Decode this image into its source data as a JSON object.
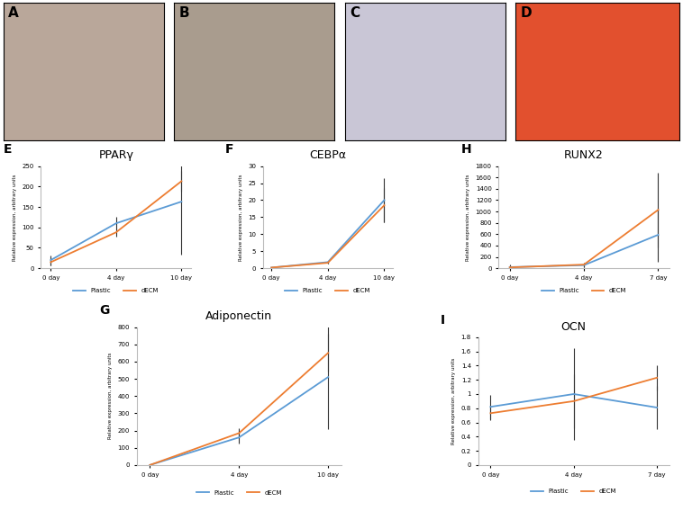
{
  "images": [
    {
      "panel_label": "A",
      "color": "#b9a79a"
    },
    {
      "panel_label": "B",
      "color": "#a99c8e"
    },
    {
      "panel_label": "C",
      "color": "#c9c6d6"
    },
    {
      "panel_label": "D",
      "color": "#e2502e"
    }
  ],
  "chart_data": [
    {
      "type": "line",
      "panel_label": "E",
      "title": "PPARγ",
      "y_label": "Relative expression, arbitrary units",
      "categories": [
        "0 day",
        "4 day",
        "10 day"
      ],
      "ylim": [
        0,
        250
      ],
      "yticks": [
        0,
        50,
        100,
        150,
        200,
        250
      ],
      "legend": "bottom",
      "series": [
        {
          "name": "Plastic",
          "color": "#5b9bd5",
          "values": [
            20,
            110,
            163
          ],
          "errors": [
            12,
            15,
            130
          ]
        },
        {
          "name": "dECM",
          "color": "#ed7d31",
          "values": [
            15,
            88,
            213
          ],
          "errors": [
            8,
            10,
            25
          ]
        }
      ]
    },
    {
      "type": "line",
      "panel_label": "F",
      "title": "CEBPα",
      "y_label": "Relative expression, arbitrary units",
      "categories": [
        "0 day",
        "4 day",
        "10 day"
      ],
      "ylim": [
        0,
        30
      ],
      "yticks": [
        0,
        5,
        10,
        15,
        20,
        25,
        30
      ],
      "legend": "bottom",
      "series": [
        {
          "name": "Plastic",
          "color": "#5b9bd5",
          "values": [
            0.2,
            1.8,
            20
          ],
          "errors": [
            0.2,
            0.3,
            6.5
          ]
        },
        {
          "name": "dECM",
          "color": "#ed7d31",
          "values": [
            0.2,
            1.6,
            18.5
          ],
          "errors": [
            0.2,
            0.3,
            5
          ]
        }
      ]
    },
    {
      "type": "line",
      "panel_label": "H",
      "title": "RUNX2",
      "y_label": "Relative expression, arbitrary units",
      "categories": [
        "0 day",
        "4 day",
        "7 day"
      ],
      "ylim": [
        0,
        1800
      ],
      "yticks": [
        0,
        200,
        400,
        600,
        800,
        1000,
        1200,
        1400,
        1600,
        1800
      ],
      "legend": "bottom",
      "series": [
        {
          "name": "Plastic",
          "color": "#5b9bd5",
          "values": [
            20,
            55,
            590
          ],
          "errors": [
            50,
            30,
            480
          ]
        },
        {
          "name": "dECM",
          "color": "#ed7d31",
          "values": [
            15,
            65,
            1030
          ],
          "errors": [
            30,
            40,
            660
          ]
        }
      ]
    },
    {
      "type": "line",
      "panel_label": "G",
      "title": "Adiponectin",
      "y_label": "Relative expression, arbitrary units",
      "categories": [
        "0 day",
        "4 day",
        "10 day"
      ],
      "ylim": [
        0,
        800
      ],
      "yticks": [
        0,
        100,
        200,
        300,
        400,
        500,
        600,
        700,
        800
      ],
      "legend": "bottom",
      "series": [
        {
          "name": "Plastic",
          "color": "#5b9bd5",
          "values": [
            0,
            160,
            510
          ],
          "errors": [
            2,
            35,
            300
          ]
        },
        {
          "name": "dECM",
          "color": "#ed7d31",
          "values": [
            0,
            185,
            650
          ],
          "errors": [
            2,
            30,
            110
          ]
        }
      ]
    },
    {
      "type": "line",
      "panel_label": "I",
      "title": "OCN",
      "y_label": "Relative expression, arbitrary units",
      "categories": [
        "0 day",
        "4 day",
        "7 day"
      ],
      "ylim": [
        0,
        1.8
      ],
      "yticks": [
        0,
        0.2,
        0.4,
        0.6,
        0.8,
        1,
        1.2,
        1.4,
        1.6,
        1.8
      ],
      "legend": "bottom",
      "series": [
        {
          "name": "Plastic",
          "color": "#5b9bd5",
          "values": [
            0.82,
            1.0,
            0.81
          ],
          "errors": [
            0.17,
            0.65,
            0.3
          ]
        },
        {
          "name": "dECM",
          "color": "#ed7d31",
          "values": [
            0.73,
            0.9,
            1.23
          ],
          "errors": [
            0.1,
            0.38,
            0.18
          ]
        }
      ]
    }
  ]
}
